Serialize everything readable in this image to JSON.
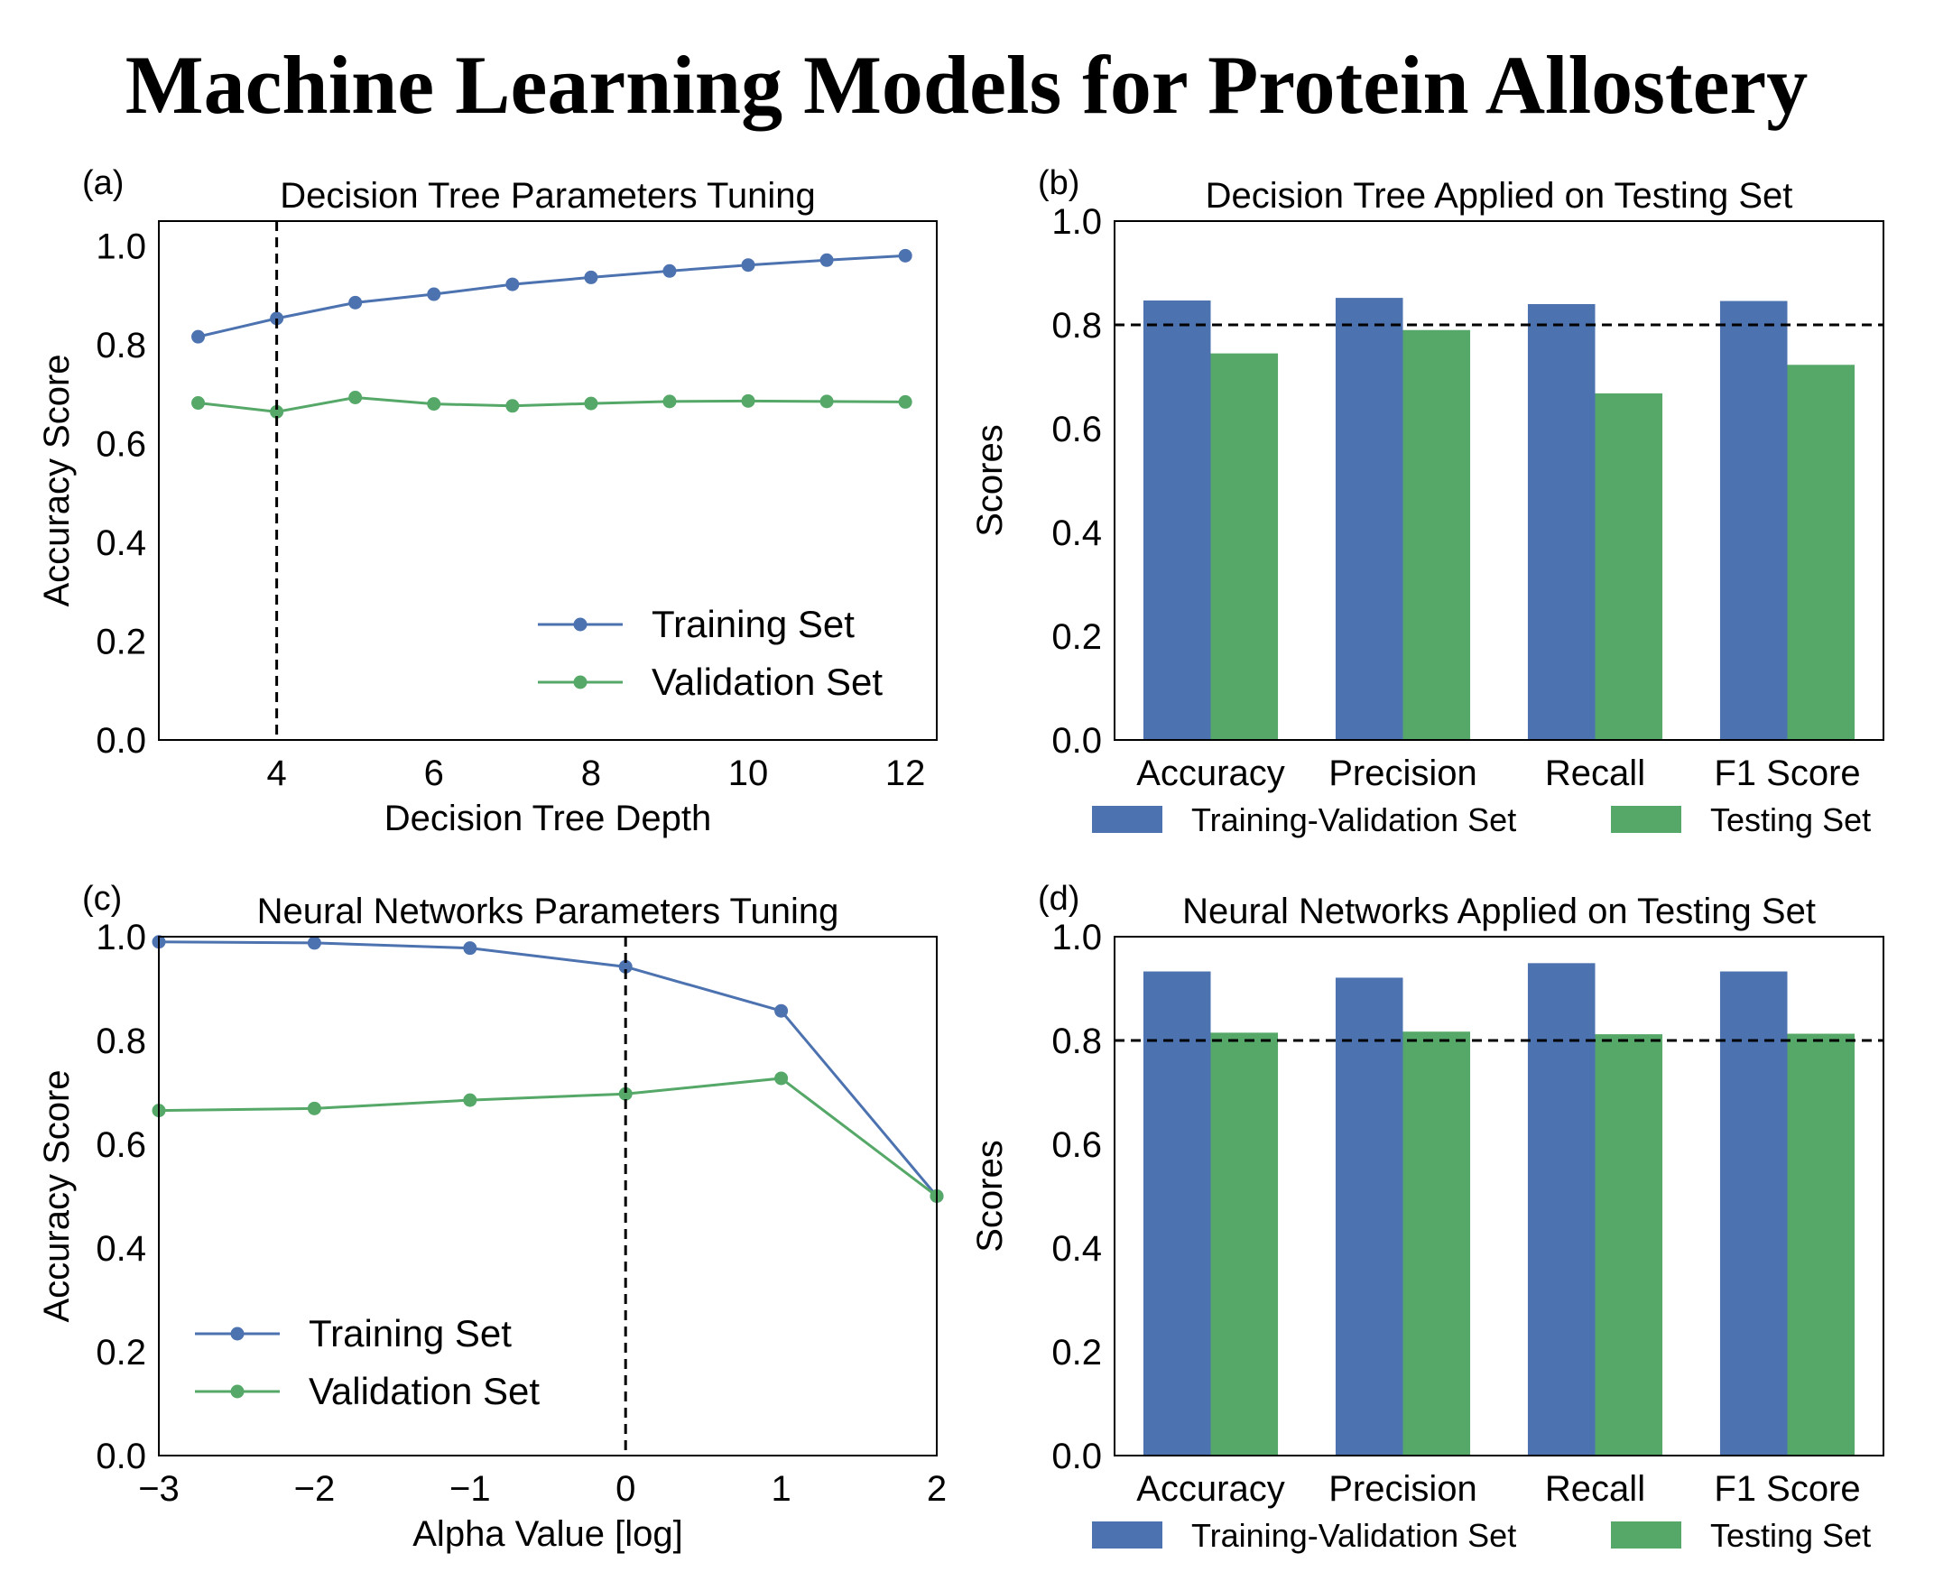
{
  "figure_title": "Machine Learning Models for Protein Allostery",
  "colors": {
    "training": "#4C72B0",
    "validation": "#55A868",
    "axis": "#000000"
  },
  "chart_data": [
    {
      "panel": "(a)",
      "type": "line",
      "title": "Decision Tree Parameters Tuning",
      "xlabel": "Decision Tree Depth",
      "ylabel": "Accuracy Score",
      "xlim": [
        2.5,
        12.4
      ],
      "ylim": [
        0.0,
        1.05
      ],
      "xticks": [
        4,
        6,
        8,
        10,
        12
      ],
      "xtick_labels": [
        "4",
        "6",
        "8",
        "10",
        "12"
      ],
      "yticks": [
        0.0,
        0.2,
        0.4,
        0.6,
        0.8,
        1.0
      ],
      "ytick_labels": [
        "0.0",
        "0.2",
        "0.4",
        "0.6",
        "0.8",
        "1.0"
      ],
      "vline": 4,
      "x": [
        3,
        4,
        5,
        6,
        7,
        8,
        9,
        10,
        11,
        12
      ],
      "series": [
        {
          "name": "Training Set",
          "color": "#4C72B0",
          "values": [
            0.816,
            0.853,
            0.885,
            0.902,
            0.922,
            0.936,
            0.949,
            0.961,
            0.971,
            0.98
          ]
        },
        {
          "name": "Validation Set",
          "color": "#55A868",
          "values": [
            0.682,
            0.664,
            0.693,
            0.68,
            0.676,
            0.681,
            0.685,
            0.686,
            0.685,
            0.684
          ]
        }
      ],
      "legend": "lower-right"
    },
    {
      "panel": "(b)",
      "type": "bar",
      "title": "Decision Tree Applied on Testing Set",
      "xlabel": "",
      "ylabel": "Scores",
      "ylim": [
        0.0,
        1.0
      ],
      "yticks": [
        0.0,
        0.2,
        0.4,
        0.6,
        0.8,
        1.0
      ],
      "ytick_labels": [
        "0.0",
        "0.2",
        "0.4",
        "0.6",
        "0.8",
        "1.0"
      ],
      "hline": 0.8,
      "categories": [
        "Accuracy",
        "Precision",
        "Recall",
        "F1 Score"
      ],
      "series": [
        {
          "name": "Training-Validation Set",
          "color": "#4C72B0",
          "values": [
            0.847,
            0.852,
            0.84,
            0.846
          ]
        },
        {
          "name": "Testing Set",
          "color": "#55A868",
          "values": [
            0.745,
            0.79,
            0.668,
            0.723
          ]
        }
      ],
      "legend": "below"
    },
    {
      "panel": "(c)",
      "type": "line",
      "title": "Neural Networks Parameters Tuning",
      "xlabel": "Alpha Value [log]",
      "ylabel": "Accuracy Score",
      "xlim": [
        -3,
        2
      ],
      "ylim": [
        0.0,
        1.0
      ],
      "xticks": [
        -3,
        -2,
        -1,
        0,
        1,
        2
      ],
      "xtick_labels": [
        "−3",
        "−2",
        "−1",
        "0",
        "1",
        "2"
      ],
      "yticks": [
        0.0,
        0.2,
        0.4,
        0.6,
        0.8,
        1.0
      ],
      "ytick_labels": [
        "0.0",
        "0.2",
        "0.4",
        "0.6",
        "0.8",
        "1.0"
      ],
      "vline": 0,
      "x": [
        -3,
        -2,
        -1,
        0,
        1,
        2
      ],
      "series": [
        {
          "name": "Training Set",
          "color": "#4C72B0",
          "values": [
            0.99,
            0.988,
            0.978,
            0.942,
            0.857,
            0.5
          ]
        },
        {
          "name": "Validation Set",
          "color": "#55A868",
          "values": [
            0.665,
            0.669,
            0.685,
            0.697,
            0.727,
            0.5
          ]
        }
      ],
      "legend": "lower-left"
    },
    {
      "panel": "(d)",
      "type": "bar",
      "title": "Neural Networks Applied on Testing Set",
      "xlabel": "",
      "ylabel": "Scores",
      "ylim": [
        0.0,
        1.0
      ],
      "yticks": [
        0.0,
        0.2,
        0.4,
        0.6,
        0.8,
        1.0
      ],
      "ytick_labels": [
        "0.0",
        "0.2",
        "0.4",
        "0.6",
        "0.8",
        "1.0"
      ],
      "hline": 0.8,
      "categories": [
        "Accuracy",
        "Precision",
        "Recall",
        "F1 Score"
      ],
      "series": [
        {
          "name": "Training-Validation Set",
          "color": "#4C72B0",
          "values": [
            0.933,
            0.921,
            0.949,
            0.933
          ]
        },
        {
          "name": "Testing Set",
          "color": "#55A868",
          "values": [
            0.815,
            0.817,
            0.812,
            0.813
          ]
        }
      ],
      "legend": "below"
    }
  ]
}
